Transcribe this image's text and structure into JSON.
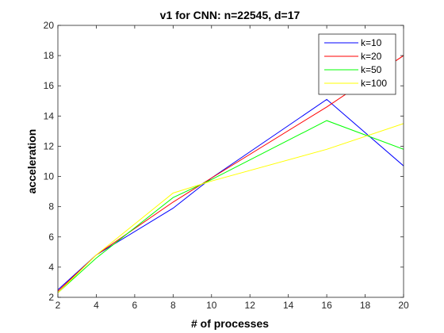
{
  "chart_data": {
    "type": "line",
    "title": "v1 for CNN: n=22545, d=17",
    "xlabel": "# of processes",
    "ylabel": "acceleration",
    "xlim": [
      2,
      20
    ],
    "ylim": [
      2,
      20
    ],
    "xticks": [
      2,
      4,
      6,
      8,
      10,
      12,
      14,
      16,
      18,
      20
    ],
    "yticks": [
      2,
      4,
      6,
      8,
      10,
      12,
      14,
      16,
      18,
      20
    ],
    "grid": false,
    "legend_position": "top-right",
    "series": [
      {
        "name": "k=10",
        "color": "#0000ff",
        "x": [
          2,
          4,
          8,
          10,
          16,
          20
        ],
        "y": [
          2.5,
          4.8,
          7.9,
          9.9,
          15.1,
          10.7
        ]
      },
      {
        "name": "k=20",
        "color": "#ff0000",
        "x": [
          2,
          4,
          8,
          10,
          16,
          20
        ],
        "y": [
          2.4,
          4.8,
          8.3,
          9.9,
          14.6,
          18.0
        ]
      },
      {
        "name": "k=50",
        "color": "#00ff00",
        "x": [
          2,
          4,
          8,
          10,
          16,
          20
        ],
        "y": [
          2.3,
          4.6,
          8.6,
          9.8,
          13.7,
          11.8
        ]
      },
      {
        "name": "k=100",
        "color": "#ffff00",
        "x": [
          2,
          4,
          8,
          10,
          16,
          20
        ],
        "y": [
          2.3,
          4.8,
          8.9,
          9.7,
          11.8,
          13.5
        ]
      }
    ]
  }
}
